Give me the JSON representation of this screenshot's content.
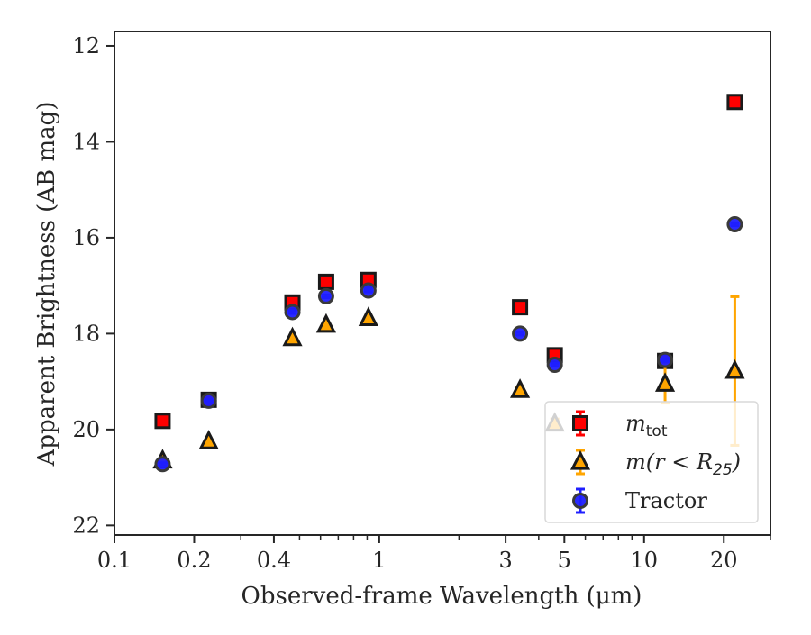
{
  "chart_data": {
    "type": "scatter",
    "xlabel": "Observed-frame Wavelength (μm)",
    "ylabel": "Apparent Brightness (AB mag)",
    "xscale": "log",
    "xlim": [
      0.1,
      30
    ],
    "ylim": [
      22.2,
      11.7
    ],
    "y_inverted": true,
    "grid": false,
    "legend_position": "lower-right",
    "x_ticks": [
      {
        "value": 0.1,
        "label": "0.1"
      },
      {
        "value": 0.2,
        "label": "0.2"
      },
      {
        "value": 0.4,
        "label": "0.4"
      },
      {
        "value": 1,
        "label": "1"
      },
      {
        "value": 3,
        "label": "3"
      },
      {
        "value": 5,
        "label": "5"
      },
      {
        "value": 10,
        "label": "10"
      },
      {
        "value": 20,
        "label": "20"
      }
    ],
    "x_minor_ticks": [
      0.3,
      0.5,
      0.6,
      0.7,
      0.8,
      0.9,
      2,
      4,
      6,
      7,
      8,
      9,
      30
    ],
    "y_ticks": [
      {
        "value": 12,
        "label": "12"
      },
      {
        "value": 14,
        "label": "14"
      },
      {
        "value": 16,
        "label": "16"
      },
      {
        "value": 18,
        "label": "18"
      },
      {
        "value": 20,
        "label": "20"
      },
      {
        "value": 22,
        "label": "22"
      }
    ],
    "series": [
      {
        "name_main": "m",
        "name_sub": "tot",
        "marker": "square",
        "color": "#ff0000",
        "edge_color": "#1a1a1a",
        "points": [
          {
            "x": 0.152,
            "y": 19.82,
            "err": 0.02
          },
          {
            "x": 0.227,
            "y": 19.38,
            "err": 0.02
          },
          {
            "x": 0.47,
            "y": 17.35,
            "err": 0.02
          },
          {
            "x": 0.63,
            "y": 16.92,
            "err": 0.02
          },
          {
            "x": 0.91,
            "y": 16.88,
            "err": 0.02
          },
          {
            "x": 3.4,
            "y": 17.45,
            "err": 0.02
          },
          {
            "x": 4.6,
            "y": 18.45,
            "err": 0.02
          },
          {
            "x": 12.0,
            "y": 18.57,
            "err": 0.02
          },
          {
            "x": 22.0,
            "y": 13.17,
            "err": 0.02
          }
        ]
      },
      {
        "name_main": "m(r < R",
        "name_sub": "25",
        "name_end": ")",
        "marker": "triangle",
        "color": "#ffa500",
        "edge_color": "#1a1a1a",
        "points": [
          {
            "x": 0.152,
            "y": 20.65,
            "err": 0.03
          },
          {
            "x": 0.227,
            "y": 20.25,
            "err": 0.03
          },
          {
            "x": 0.47,
            "y": 18.1,
            "err": 0.03
          },
          {
            "x": 0.63,
            "y": 17.82,
            "err": 0.03
          },
          {
            "x": 0.91,
            "y": 17.68,
            "err": 0.03
          },
          {
            "x": 3.4,
            "y": 19.18,
            "err": 0.05
          },
          {
            "x": 4.6,
            "y": 19.88,
            "err": 0.1
          },
          {
            "x": 12.0,
            "y": 19.05,
            "err": 0.4
          },
          {
            "x": 22.0,
            "y": 18.78,
            "err": 1.55
          }
        ]
      },
      {
        "name_main": "Tractor",
        "marker": "circle",
        "color": "#1f1fff",
        "edge_color": "#3a3a3a",
        "points": [
          {
            "x": 0.152,
            "y": 20.72,
            "err": 0.03
          },
          {
            "x": 0.227,
            "y": 19.4,
            "err": 0.02
          },
          {
            "x": 0.47,
            "y": 17.55,
            "err": 0.03
          },
          {
            "x": 0.63,
            "y": 17.22,
            "err": 0.03
          },
          {
            "x": 0.91,
            "y": 17.1,
            "err": 0.03
          },
          {
            "x": 3.4,
            "y": 18.0,
            "err": 0.03
          },
          {
            "x": 4.6,
            "y": 18.65,
            "err": 0.03
          },
          {
            "x": 12.0,
            "y": 18.55,
            "err": 0.03
          },
          {
            "x": 22.0,
            "y": 15.72,
            "err": 0.03
          }
        ]
      }
    ]
  }
}
